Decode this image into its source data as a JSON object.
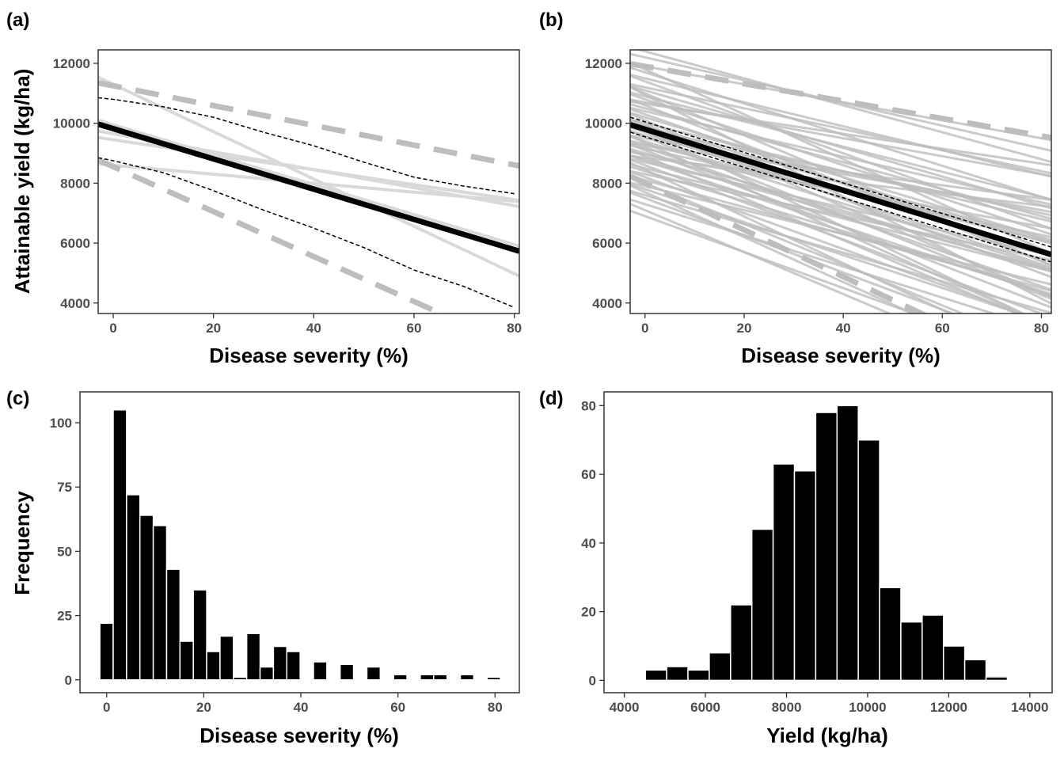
{
  "chart_data": [
    {
      "panel": "a",
      "type": "line",
      "panel_tag": "(a)",
      "xlabel": "Disease severity (%)",
      "ylabel": "Attainable yield (kg/ha)",
      "xlim": [
        -3,
        81
      ],
      "ylim": [
        3650,
        12450
      ],
      "xticks": [
        0,
        20,
        40,
        60,
        80
      ],
      "yticks": [
        4000,
        6000,
        8000,
        10000,
        12000
      ],
      "colors": {
        "study_lines": "#d9d9d9",
        "prediction_band": "#bdbdbd",
        "mean": "#000000",
        "confidence_band": "#000000"
      },
      "mean_line": {
        "y0": 9820,
        "slope": -50.5
      },
      "confidence_band": {
        "upper": [
          [
            -3,
            10850
          ],
          [
            0,
            10800
          ],
          [
            10,
            10550
          ],
          [
            20,
            10200
          ],
          [
            30,
            9700
          ],
          [
            40,
            9250
          ],
          [
            50,
            8700
          ],
          [
            60,
            8200
          ],
          [
            70,
            7900
          ],
          [
            80,
            7650
          ]
        ],
        "lower": [
          [
            -3,
            8850
          ],
          [
            0,
            8750
          ],
          [
            10,
            8350
          ],
          [
            20,
            7750
          ],
          [
            30,
            7100
          ],
          [
            40,
            6500
          ],
          [
            50,
            5850
          ],
          [
            60,
            5100
          ],
          [
            70,
            4550
          ],
          [
            80,
            3850
          ]
        ]
      },
      "prediction_band": {
        "upper": {
          "y0": 11250,
          "slope": -33
        },
        "lower": {
          "y0": 8550,
          "slope": -75
        }
      },
      "study_lines": [
        {
          "y0": 11300,
          "slope": -79
        },
        {
          "y0": 9650,
          "slope": -30
        },
        {
          "y0": 9450,
          "slope": -25
        },
        {
          "y0": 8600,
          "slope": -15
        },
        {
          "y0": 9950,
          "slope": -50
        }
      ]
    },
    {
      "panel": "b",
      "type": "line",
      "panel_tag": "(b)",
      "xlabel": "Disease severity (%)",
      "ylabel": "",
      "xlim": [
        -3,
        82
      ],
      "ylim": [
        3650,
        12450
      ],
      "xticks": [
        0,
        20,
        40,
        60,
        80
      ],
      "yticks": [
        4000,
        6000,
        8000,
        10000,
        12000
      ],
      "colors": {
        "study_lines": "#bdbdbd",
        "prediction_band": "#bdbdbd",
        "mean": "#000000",
        "confidence_band": "#000000"
      },
      "mean_line": {
        "y0": 9800,
        "slope": -51
      },
      "confidence_band_offset": 250,
      "prediction_band": {
        "upper": {
          "y0": 11900,
          "slope": -29
        },
        "lower": {
          "y0": 8000,
          "slope": -78
        }
      },
      "study_lines": [
        {
          "y0": 12400,
          "slope": -45
        },
        {
          "y0": 12200,
          "slope": -38
        },
        {
          "y0": 11900,
          "slope": -30
        },
        {
          "y0": 11700,
          "slope": -52
        },
        {
          "y0": 11500,
          "slope": -40
        },
        {
          "y0": 11400,
          "slope": -60
        },
        {
          "y0": 11200,
          "slope": -35
        },
        {
          "y0": 11100,
          "slope": -48
        },
        {
          "y0": 11000,
          "slope": -70
        },
        {
          "y0": 10900,
          "slope": -42
        },
        {
          "y0": 10800,
          "slope": -55
        },
        {
          "y0": 10700,
          "slope": -30
        },
        {
          "y0": 10600,
          "slope": -65
        },
        {
          "y0": 10500,
          "slope": -45
        },
        {
          "y0": 10400,
          "slope": -38
        },
        {
          "y0": 10300,
          "slope": -58
        },
        {
          "y0": 10200,
          "slope": -50
        },
        {
          "y0": 10100,
          "slope": -72
        },
        {
          "y0": 10000,
          "slope": -40
        },
        {
          "y0": 9950,
          "slope": -62
        },
        {
          "y0": 9900,
          "slope": -47
        },
        {
          "y0": 9800,
          "slope": -35
        },
        {
          "y0": 9750,
          "slope": -80
        },
        {
          "y0": 9700,
          "slope": -55
        },
        {
          "y0": 9600,
          "slope": -44
        },
        {
          "y0": 9550,
          "slope": -66
        },
        {
          "y0": 9500,
          "slope": -30
        },
        {
          "y0": 9400,
          "slope": -52
        },
        {
          "y0": 9350,
          "slope": -75
        },
        {
          "y0": 9300,
          "slope": -40
        },
        {
          "y0": 9200,
          "slope": -58
        },
        {
          "y0": 9150,
          "slope": -36
        },
        {
          "y0": 9100,
          "slope": -64
        },
        {
          "y0": 9000,
          "slope": -48
        },
        {
          "y0": 8950,
          "slope": -30
        },
        {
          "y0": 8900,
          "slope": -70
        },
        {
          "y0": 8800,
          "slope": -45
        },
        {
          "y0": 8750,
          "slope": -55
        },
        {
          "y0": 8700,
          "slope": -38
        },
        {
          "y0": 8600,
          "slope": -62
        },
        {
          "y0": 8500,
          "slope": -42
        },
        {
          "y0": 8450,
          "slope": -78
        },
        {
          "y0": 8400,
          "slope": -50
        },
        {
          "y0": 8300,
          "slope": -35
        },
        {
          "y0": 8200,
          "slope": -60
        },
        {
          "y0": 8100,
          "slope": -45
        },
        {
          "y0": 8000,
          "slope": -68
        },
        {
          "y0": 7900,
          "slope": -40
        },
        {
          "y0": 7800,
          "slope": -55
        },
        {
          "y0": 7700,
          "slope": -75
        },
        {
          "y0": 7600,
          "slope": -48
        },
        {
          "y0": 7500,
          "slope": -62
        },
        {
          "y0": 7300,
          "slope": -52
        },
        {
          "y0": 7100,
          "slope": -70
        },
        {
          "y0": 6900,
          "slope": -60
        },
        {
          "y0": 10650,
          "slope": -25
        },
        {
          "y0": 11800,
          "slope": -75
        },
        {
          "y0": 10950,
          "slope": -85
        },
        {
          "y0": 9250,
          "slope": -22
        },
        {
          "y0": 8850,
          "slope": -20
        }
      ]
    },
    {
      "panel": "c",
      "type": "bar",
      "panel_tag": "(c)",
      "xlabel": "Disease severity (%)",
      "ylabel": "Frequency",
      "xlim": [
        -5.5,
        85
      ],
      "ylim": [
        -5,
        112
      ],
      "xticks": [
        0,
        20,
        40,
        60,
        80
      ],
      "yticks": [
        0,
        25,
        50,
        75,
        100
      ],
      "bin_width": 2.75,
      "bin_start": -1.4,
      "values": [
        22,
        105,
        72,
        64,
        60,
        43,
        15,
        35,
        11,
        17,
        1,
        18,
        5,
        13,
        11,
        0,
        7,
        0,
        6,
        0,
        5,
        0,
        2,
        0,
        2,
        2,
        0,
        2,
        0,
        1
      ],
      "color": "#000000"
    },
    {
      "panel": "d",
      "type": "bar",
      "panel_tag": "(d)",
      "xlabel": "Yield (kg/ha)",
      "ylabel": "",
      "xlim": [
        3500,
        14550
      ],
      "ylim": [
        -3.6,
        84
      ],
      "xticks": [
        4000,
        6000,
        8000,
        10000,
        12000,
        14000
      ],
      "yticks": [
        0,
        20,
        40,
        60,
        80
      ],
      "bin_width": 525,
      "bin_start": 4520,
      "values": [
        3,
        4,
        3,
        8,
        22,
        44,
        63,
        61,
        78,
        80,
        70,
        27,
        17,
        19,
        10,
        6,
        1
      ],
      "color": "#000000"
    }
  ]
}
